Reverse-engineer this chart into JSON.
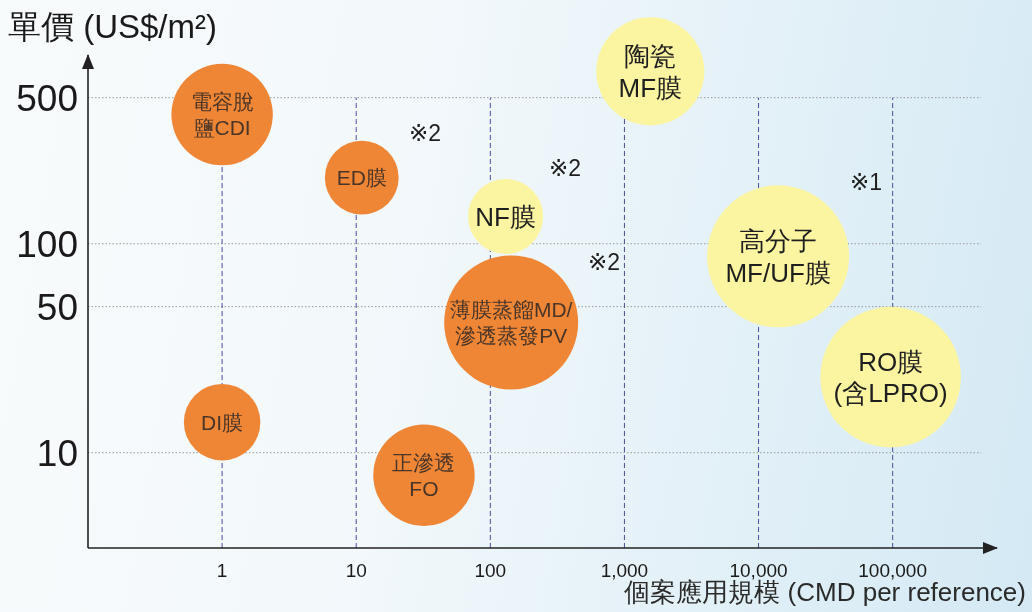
{
  "chart_data": {
    "type": "bubble",
    "xlabel": "個案應用規模 (CMD per reference)",
    "ylabel": "單價 (US$/m²)",
    "log": "xy",
    "xlim": [
      0.1,
      600000
    ],
    "xticks": [
      1,
      10,
      100,
      {
        "value": 1000,
        "label": "1,000"
      },
      {
        "value": 10000,
        "label": "10,000"
      },
      {
        "value": 100000,
        "label": "100,000"
      }
    ],
    "ylim": [
      3.5,
      800
    ],
    "yticks": [
      10,
      50,
      100,
      500
    ],
    "grid": true,
    "series": [
      {
        "name": "電容脫鹽CDI",
        "color": "#ef8636",
        "x": [
          1
        ],
        "values": [
          415
        ],
        "sizes": [
          0.51
        ]
      },
      {
        "name": "ED膜",
        "color": "#ef8636",
        "x": [
          11
        ],
        "values": [
          207
        ],
        "sizes": [
          0.27
        ]
      },
      {
        "name": "DI膜",
        "color": "#ef8636",
        "x": [
          1
        ],
        "values": [
          14
        ],
        "sizes": [
          0.29
        ]
      },
      {
        "name": "正滲透\nFO",
        "color": "#ef8636",
        "x": [
          32
        ],
        "values": [
          7.8
        ],
        "sizes": [
          0.51
        ]
      },
      {
        "name": "NF膜",
        "color": "#fbf5a2",
        "x": [
          130
        ],
        "values": [
          135
        ],
        "sizes": [
          0.28
        ]
      },
      {
        "name": "薄膜蒸餾MD/\n滲透蒸發PV",
        "color": "#ef8636",
        "x": [
          143
        ],
        "values": [
          42
        ],
        "sizes": [
          0.89
        ]
      },
      {
        "name": "陶瓷MF膜",
        "color": "#fbf5a2",
        "x": [
          1560
        ],
        "values": [
          668
        ],
        "sizes": [
          0.58
        ]
      },
      {
        "name": "高分子\nMF/UF膜",
        "color": "#fbf5a2",
        "x": [
          14000
        ],
        "values": [
          87
        ],
        "sizes": [
          1
        ]
      },
      {
        "name": "RO膜\n(含LPRO)",
        "color": "#fbf5a2",
        "x": [
          96600
        ],
        "values": [
          23
        ],
        "sizes": [
          0.98
        ]
      }
    ],
    "annotations": [
      "※2",
      "※2",
      "※1",
      "※2"
    ]
  }
}
